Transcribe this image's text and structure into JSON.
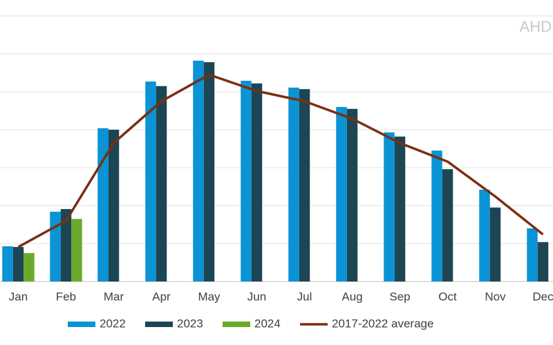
{
  "chart_data": {
    "type": "bar",
    "watermark": "AHD",
    "categories": [
      "Jan",
      "Feb",
      "Mar",
      "Apr",
      "May",
      "Jun",
      "Jul",
      "Aug",
      "Sep",
      "Oct",
      "Nov",
      "Dec"
    ],
    "series": [
      {
        "name": "2022",
        "color": "#0a93d5",
        "values": [
          0.93,
          1.84,
          4.04,
          5.27,
          5.82,
          5.29,
          5.11,
          4.6,
          3.93,
          3.45,
          2.42,
          1.4
        ]
      },
      {
        "name": "2023",
        "color": "#1d4654",
        "values": [
          0.91,
          1.91,
          4.0,
          5.15,
          5.78,
          5.22,
          5.07,
          4.55,
          3.82,
          2.96,
          1.95,
          1.04
        ]
      },
      {
        "name": "2024",
        "color": "#6aaa2a",
        "values": [
          0.75,
          1.65,
          null,
          null,
          null,
          null,
          null,
          null,
          null,
          null,
          null,
          null
        ]
      },
      {
        "name": "2017-2022 average",
        "type": "line",
        "color": "#7a2f12",
        "values": [
          0.91,
          1.6,
          3.65,
          4.75,
          5.45,
          5.02,
          4.75,
          4.29,
          3.65,
          3.16,
          2.24,
          1.24
        ]
      }
    ],
    "ylim": [
      0,
      7
    ],
    "yticks": [
      0,
      1,
      2,
      3,
      4,
      5,
      6,
      7
    ],
    "grid": true,
    "legend": "bottom"
  }
}
